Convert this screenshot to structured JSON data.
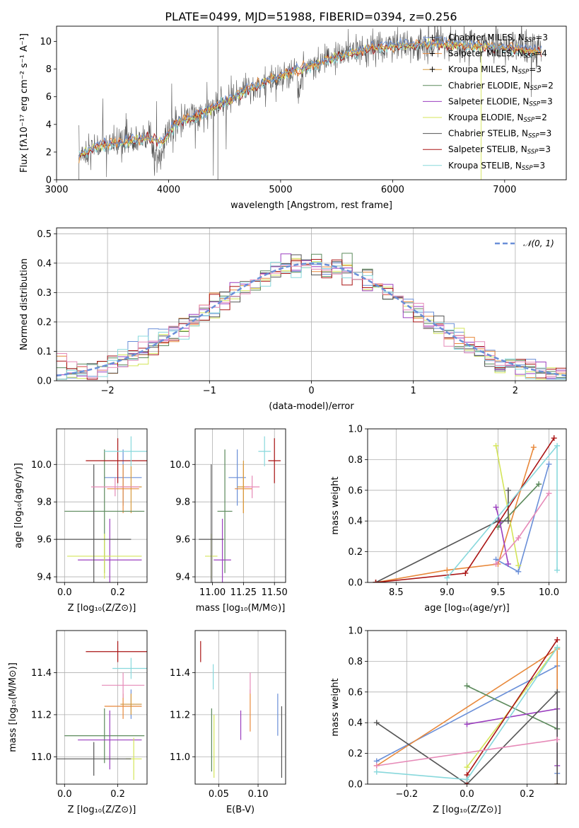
{
  "colors": {
    "chabrier_miles": "#6a8fd8",
    "salpeter_miles": "#e8883a",
    "kroupa_miles": "#d79a3c",
    "chabrier_elodie": "#5c8a5c",
    "salpeter_elodie": "#9b3fbf",
    "kroupa_elodie": "#d4e55a",
    "chabrier_stelib": "#555555",
    "salpeter_stelib": "#aa1515",
    "kroupa_stelib": "#88d8dc",
    "pink": "#e68ab8",
    "grid": "#b0b0b0"
  },
  "chart_data": [
    {
      "id": "spectrum",
      "type": "line",
      "title": "PLATE=0499, MJD=51988, FIBERID=0394, z=0.256",
      "xlabel": "wavelength [Angstrom, rest frame]",
      "ylabel": "Flux [fλ10⁻¹⁷ erg cm⁻² s⁻¹ A⁻¹]",
      "xlim": [
        3000,
        7550
      ],
      "ylim": [
        0,
        11.1
      ],
      "xticks": [
        3000,
        4000,
        5000,
        6000,
        7000
      ],
      "yticks": [
        0,
        2,
        4,
        6,
        8,
        10
      ],
      "grid": false,
      "legend_position": "top-right",
      "legend": [
        {
          "label": "Chabrier MILES, N",
          "sub": "SSP",
          "suffix": "=3",
          "color": "chabrier_miles"
        },
        {
          "label": "Salpeter MILES, N",
          "sub": "SSP",
          "suffix": "=4",
          "color": "salpeter_miles"
        },
        {
          "label": "Kroupa MILES, N",
          "sub": "SSP",
          "suffix": "=3",
          "color": "kroupa_miles"
        },
        {
          "label": "Chabrier ELODIE, N",
          "sub": "SSP",
          "suffix": "=2",
          "color": "chabrier_elodie"
        },
        {
          "label": "Salpeter ELODIE, N",
          "sub": "SSP",
          "suffix": "=3",
          "color": "salpeter_elodie"
        },
        {
          "label": "Kroupa ELODIE, N",
          "sub": "SSP",
          "suffix": "=2",
          "color": "kroupa_elodie"
        },
        {
          "label": "Chabrier STELIB, N",
          "sub": "SSP",
          "suffix": "=3",
          "color": "chabrier_stelib"
        },
        {
          "label": "Salpeter STELIB, N",
          "sub": "SSP",
          "suffix": "=3",
          "color": "salpeter_stelib"
        },
        {
          "label": "Kroupa STELIB, N",
          "sub": "SSP",
          "suffix": "=3",
          "color": "kroupa_stelib"
        }
      ],
      "continuum": [
        [
          3200,
          1.8
        ],
        [
          3400,
          2.5
        ],
        [
          3600,
          2.7
        ],
        [
          3800,
          3.0
        ],
        [
          3950,
          2.7
        ],
        [
          4050,
          4.0
        ],
        [
          4300,
          4.8
        ],
        [
          4500,
          5.6
        ],
        [
          4700,
          6.5
        ],
        [
          4900,
          7.2
        ],
        [
          5100,
          7.8
        ],
        [
          5300,
          8.3
        ],
        [
          5500,
          8.9
        ],
        [
          5700,
          9.3
        ],
        [
          5900,
          9.6
        ],
        [
          6100,
          9.7
        ],
        [
          6300,
          9.8
        ],
        [
          6500,
          9.8
        ],
        [
          6700,
          9.7
        ],
        [
          6900,
          9.6
        ],
        [
          7100,
          9.5
        ],
        [
          7300,
          9.3
        ]
      ]
    },
    {
      "id": "residuals",
      "type": "bar",
      "xlabel": "(data-model)/error",
      "ylabel": "Normed distribution",
      "xlim": [
        -2.5,
        2.5
      ],
      "ylim": [
        0,
        0.52
      ],
      "xticks": [
        -2,
        -1,
        0,
        1,
        2
      ],
      "yticks": [
        0.0,
        0.1,
        0.2,
        0.3,
        0.4,
        0.5
      ],
      "grid": true,
      "legend_position": "top-right",
      "legend": [
        {
          "label": "𝒩(0, 1)",
          "color": "chabrier_miles",
          "dashed": true
        }
      ],
      "bin_width": 0.1
    },
    {
      "id": "z_age",
      "type": "scatter",
      "xlabel": "Z [log₁₀(Z/Z⊙)]",
      "ylabel": "age  [log₁₀(age/yr)]",
      "xlim": [
        -0.03,
        0.31
      ],
      "ylim": [
        9.37,
        10.19
      ],
      "xticks": [
        0.0,
        0.2
      ],
      "yticks": [
        9.4,
        9.6,
        9.8,
        10.0
      ],
      "grid": true,
      "points": [
        {
          "x": 0.22,
          "y": 9.93,
          "xerr": 0.07,
          "yerr": 0.15,
          "color": "chabrier_miles"
        },
        {
          "x": 0.22,
          "y": 9.87,
          "xerr": 0.06,
          "yerr": 0.13,
          "color": "salpeter_miles"
        },
        {
          "x": 0.25,
          "y": 9.88,
          "xerr": 0.04,
          "yerr": 0.14,
          "color": "kroupa_miles"
        },
        {
          "x": 0.15,
          "y": 9.75,
          "xerr": 0.15,
          "yerr": 0.33,
          "color": "chabrier_elodie"
        },
        {
          "x": 0.17,
          "y": 9.49,
          "xerr": 0.12,
          "yerr": 0.22,
          "color": "salpeter_elodie"
        },
        {
          "x": 0.15,
          "y": 9.51,
          "xerr": 0.14,
          "yerr": 0.12,
          "color": "kroupa_elodie"
        },
        {
          "x": 0.11,
          "y": 9.6,
          "xerr": 0.14,
          "yerr": 0.4,
          "color": "chabrier_stelib"
        },
        {
          "x": 0.2,
          "y": 10.02,
          "xerr": 0.12,
          "yerr": 0.12,
          "color": "salpeter_stelib"
        },
        {
          "x": 0.25,
          "y": 10.07,
          "xerr": 0.1,
          "yerr": 0.08,
          "color": "kroupa_stelib"
        },
        {
          "x": 0.19,
          "y": 9.88,
          "xerr": 0.09,
          "yerr": 0.05,
          "color": "pink"
        }
      ]
    },
    {
      "id": "mass_age",
      "type": "scatter",
      "xlabel": "mass [log₁₀(M/M⊙)]",
      "ylabel": "",
      "xlim": [
        10.86,
        11.59
      ],
      "ylim": [
        9.37,
        10.19
      ],
      "xticks": [
        11.0,
        11.25,
        11.5
      ],
      "yticks": [
        9.4,
        9.6,
        9.8,
        10.0
      ],
      "grid": true,
      "points": [
        {
          "x": 11.2,
          "y": 9.93,
          "xerr": 0.07,
          "yerr": 0.15,
          "color": "chabrier_miles"
        },
        {
          "x": 11.25,
          "y": 9.87,
          "xerr": 0.07,
          "yerr": 0.13,
          "color": "salpeter_miles"
        },
        {
          "x": 11.25,
          "y": 9.88,
          "xerr": 0.05,
          "yerr": 0.14,
          "color": "kroupa_miles"
        },
        {
          "x": 11.1,
          "y": 9.75,
          "xerr": 0.06,
          "yerr": 0.33,
          "color": "chabrier_elodie"
        },
        {
          "x": 11.08,
          "y": 9.49,
          "xerr": 0.07,
          "yerr": 0.22,
          "color": "salpeter_elodie"
        },
        {
          "x": 10.99,
          "y": 9.51,
          "xerr": 0.05,
          "yerr": 0.12,
          "color": "kroupa_elodie"
        },
        {
          "x": 10.99,
          "y": 9.6,
          "xerr": 0.1,
          "yerr": 0.4,
          "color": "chabrier_stelib"
        },
        {
          "x": 11.5,
          "y": 10.02,
          "xerr": 0.05,
          "yerr": 0.12,
          "color": "salpeter_stelib"
        },
        {
          "x": 11.42,
          "y": 10.07,
          "xerr": 0.05,
          "yerr": 0.08,
          "color": "kroupa_stelib"
        },
        {
          "x": 11.32,
          "y": 9.88,
          "xerr": 0.06,
          "yerr": 0.06,
          "color": "pink"
        }
      ]
    },
    {
      "id": "age_weight",
      "type": "line",
      "xlabel": "age  [log₁₀(age/yr)]",
      "ylabel": "mass weight",
      "xlim": [
        8.22,
        10.17
      ],
      "ylim": [
        0,
        1.0
      ],
      "xticks": [
        8.5,
        9.0,
        9.5,
        10.0
      ],
      "yticks": [
        0.0,
        0.2,
        0.4,
        0.6,
        0.8,
        1.0
      ],
      "grid": true,
      "series": [
        {
          "color": "chabrier_miles",
          "x": [
            9.48,
            9.7,
            10.0
          ],
          "y": [
            0.15,
            0.07,
            0.77
          ]
        },
        {
          "color": "salpeter_miles",
          "x": [
            8.3,
            9.0,
            9.5,
            9.85
          ],
          "y": [
            0.0,
            0.08,
            0.12,
            0.88
          ]
        },
        {
          "color": "chabrier_elodie",
          "x": [
            9.5,
            9.9
          ],
          "y": [
            0.36,
            0.64
          ]
        },
        {
          "color": "salpeter_elodie",
          "x": [
            9.48,
            9.52,
            9.6
          ],
          "y": [
            0.49,
            0.39,
            0.12
          ]
        },
        {
          "color": "kroupa_elodie",
          "x": [
            9.48,
            9.7
          ],
          "y": [
            0.89,
            0.11
          ]
        },
        {
          "color": "chabrier_stelib",
          "x": [
            8.3,
            9.5,
            9.6,
            9.6
          ],
          "y": [
            0.0,
            0.4,
            0.4,
            0.6
          ]
        },
        {
          "color": "salpeter_stelib",
          "x": [
            8.3,
            9.18,
            10.05
          ],
          "y": [
            0.0,
            0.06,
            0.94
          ]
        },
        {
          "color": "kroupa_stelib",
          "x": [
            9.0,
            10.08,
            10.08
          ],
          "y": [
            0.03,
            0.89,
            0.08
          ]
        },
        {
          "color": "pink",
          "x": [
            9.48,
            9.7,
            10.0
          ],
          "y": [
            0.12,
            0.29,
            0.58
          ]
        }
      ]
    },
    {
      "id": "z_mass",
      "type": "scatter",
      "xlabel": "Z [log₁₀(Z/Z⊙)]",
      "ylabel": "mass [log₁₀(M/M⊙)]",
      "xlim": [
        -0.03,
        0.31
      ],
      "ylim": [
        10.87,
        11.6
      ],
      "xticks": [
        0.0,
        0.2
      ],
      "yticks": [
        11.0,
        11.2,
        11.4
      ],
      "grid": true,
      "points": [
        {
          "x": 0.25,
          "y": 11.25,
          "xerr": 0.04,
          "yerr": 0.07,
          "color": "chabrier_miles"
        },
        {
          "x": 0.22,
          "y": 11.24,
          "xerr": 0.07,
          "yerr": 0.06,
          "color": "salpeter_miles"
        },
        {
          "x": 0.25,
          "y": 11.25,
          "xerr": 0.04,
          "yerr": 0.05,
          "color": "kroupa_miles"
        },
        {
          "x": 0.15,
          "y": 11.1,
          "xerr": 0.15,
          "yerr": 0.13,
          "color": "chabrier_elodie"
        },
        {
          "x": 0.17,
          "y": 11.08,
          "xerr": 0.12,
          "yerr": 0.14,
          "color": "salpeter_elodie"
        },
        {
          "x": 0.26,
          "y": 10.99,
          "xerr": 0.03,
          "yerr": 0.1,
          "color": "kroupa_elodie"
        },
        {
          "x": 0.11,
          "y": 10.99,
          "xerr": 0.14,
          "yerr": 0.08,
          "color": "chabrier_stelib"
        },
        {
          "x": 0.2,
          "y": 11.5,
          "xerr": 0.12,
          "yerr": 0.05,
          "color": "salpeter_stelib"
        },
        {
          "x": 0.25,
          "y": 11.42,
          "xerr": 0.07,
          "yerr": 0.05,
          "color": "kroupa_stelib"
        },
        {
          "x": 0.22,
          "y": 11.34,
          "xerr": 0.08,
          "yerr": 0.06,
          "color": "pink"
        }
      ]
    },
    {
      "id": "ebv_mass",
      "type": "scatter",
      "xlabel": "E(B-V)",
      "ylabel": "",
      "xlim": [
        0.02,
        0.135
      ],
      "ylim": [
        10.87,
        11.6
      ],
      "xticks": [
        0.05,
        0.1
      ],
      "yticks": [
        11.0,
        11.2,
        11.4
      ],
      "grid": true,
      "points": [
        {
          "x": 0.125,
          "y": 11.2,
          "yerr": 0.1,
          "color": "chabrier_miles"
        },
        {
          "x": 0.09,
          "y": 11.22,
          "yerr": 0.1,
          "color": "salpeter_miles"
        },
        {
          "x": 0.027,
          "y": 11.5,
          "yerr": 0.05,
          "color": "salpeter_stelib"
        },
        {
          "x": 0.041,
          "y": 11.08,
          "yerr": 0.15,
          "color": "chabrier_elodie"
        },
        {
          "x": 0.044,
          "y": 11.05,
          "yerr": 0.15,
          "color": "kroupa_elodie"
        },
        {
          "x": 0.043,
          "y": 11.38,
          "yerr": 0.06,
          "color": "kroupa_stelib"
        },
        {
          "x": 0.078,
          "y": 11.15,
          "yerr": 0.07,
          "color": "salpeter_elodie"
        },
        {
          "x": 0.09,
          "y": 11.35,
          "yerr": 0.05,
          "color": "pink"
        },
        {
          "x": 0.13,
          "y": 11.07,
          "yerr": 0.17,
          "color": "chabrier_stelib"
        }
      ]
    },
    {
      "id": "z_weight",
      "type": "line",
      "xlabel": "Z [log₁₀(Z/Z⊙)]",
      "ylabel": "mass weight",
      "xlim": [
        -0.33,
        0.33
      ],
      "ylim": [
        0,
        1.0
      ],
      "xticks": [
        -0.2,
        0.0,
        0.2
      ],
      "yticks": [
        0.0,
        0.2,
        0.4,
        0.6,
        0.8,
        1.0
      ],
      "grid": true,
      "series": [
        {
          "color": "chabrier_miles",
          "x": [
            -0.3,
            0.3,
            0.3
          ],
          "y": [
            0.15,
            0.77,
            0.07
          ]
        },
        {
          "color": "salpeter_miles",
          "x": [
            -0.3,
            0.3,
            0.3
          ],
          "y": [
            0.12,
            0.88,
            0.0
          ]
        },
        {
          "color": "chabrier_elodie",
          "x": [
            0.0,
            0.3
          ],
          "y": [
            0.64,
            0.36
          ]
        },
        {
          "color": "salpeter_elodie",
          "x": [
            0.0,
            0.3,
            0.3
          ],
          "y": [
            0.39,
            0.49,
            0.12
          ]
        },
        {
          "color": "kroupa_elodie",
          "x": [
            0.0,
            0.3
          ],
          "y": [
            0.11,
            0.89
          ]
        },
        {
          "color": "chabrier_stelib",
          "x": [
            -0.3,
            0.0,
            0.3,
            0.3
          ],
          "y": [
            0.4,
            0.0,
            0.6,
            0.0
          ]
        },
        {
          "color": "salpeter_stelib",
          "x": [
            0.0,
            0.0,
            0.3
          ],
          "y": [
            0.0,
            0.06,
            0.94
          ]
        },
        {
          "color": "kroupa_stelib",
          "x": [
            -0.3,
            0.0,
            0.3
          ],
          "y": [
            0.08,
            0.03,
            0.89
          ]
        },
        {
          "color": "pink",
          "x": [
            -0.3,
            0.3
          ],
          "y": [
            0.12,
            0.29
          ]
        }
      ]
    }
  ]
}
